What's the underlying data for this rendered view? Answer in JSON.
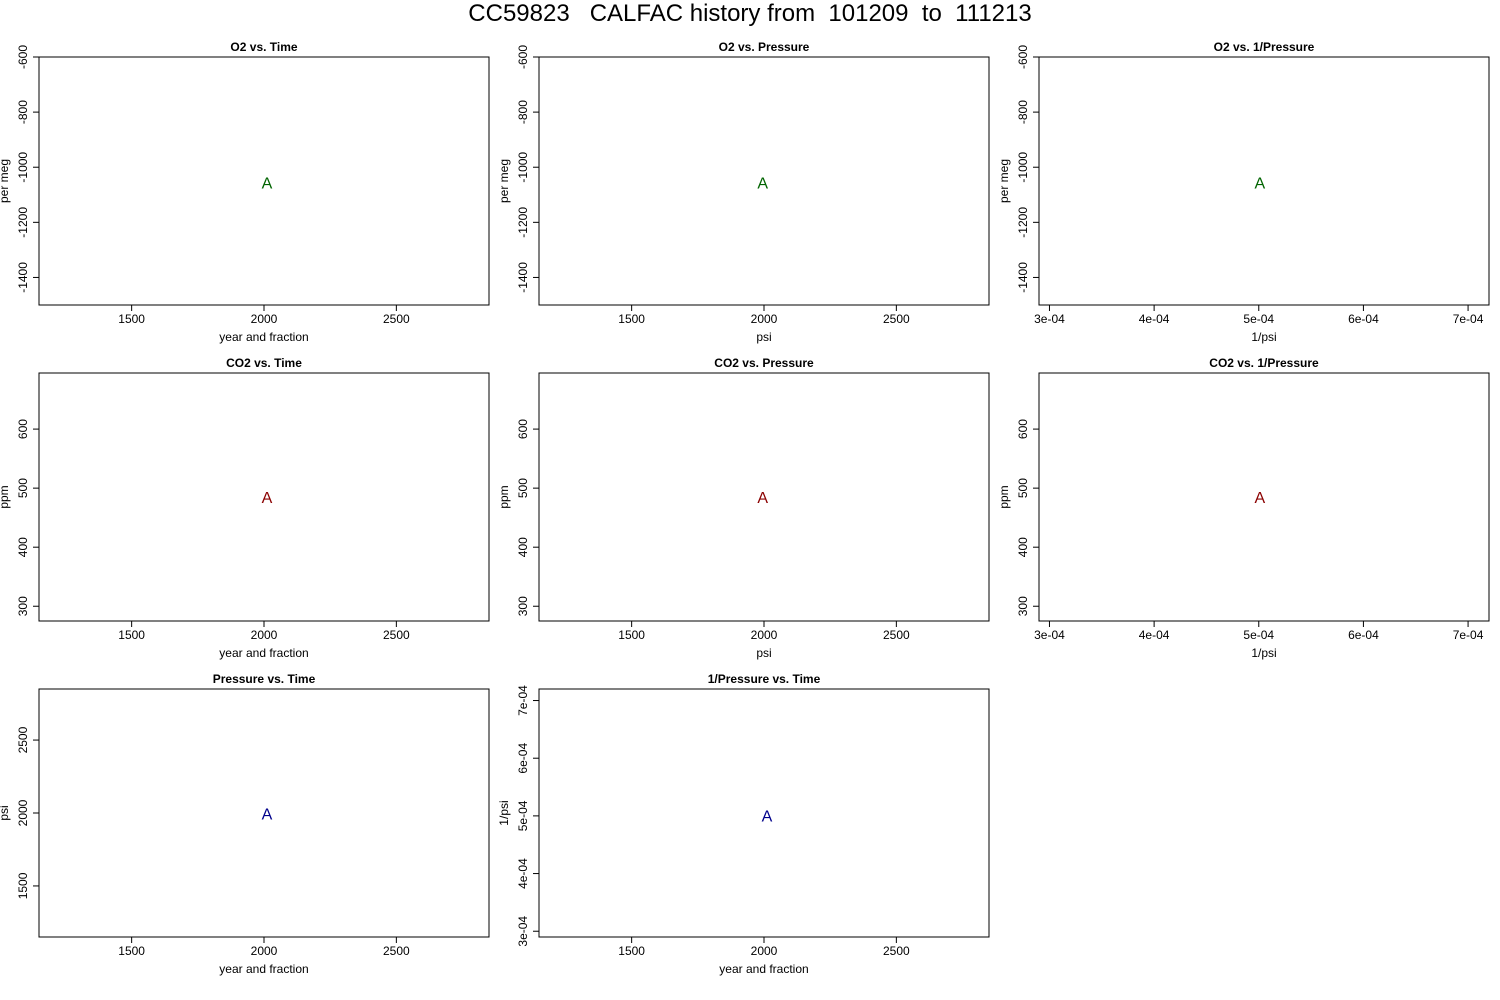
{
  "page": {
    "title": "CC59823   CALFAC history from  101209  to  111213"
  },
  "chart_data": [
    {
      "type": "scatter",
      "title": "O2 vs. Time",
      "xlabel": "year and fraction",
      "ylabel": "per meg",
      "xlim": [
        1150,
        2850
      ],
      "ylim": [
        -1500,
        -600
      ],
      "xticks": [
        1500,
        2000,
        2500
      ],
      "xtick_labels": [
        "1500",
        "2000",
        "2500"
      ],
      "yticks": [
        -600,
        -800,
        -1000,
        -1200,
        -1400
      ],
      "ytick_labels": [
        "-600",
        "-800",
        "-1000",
        "-1200",
        "-1400"
      ],
      "points": [
        {
          "x": 2011,
          "y": -1055,
          "label": "A"
        }
      ],
      "color": "#006400"
    },
    {
      "type": "scatter",
      "title": "O2 vs. Pressure",
      "xlabel": "psi",
      "ylabel": "per meg",
      "xlim": [
        1150,
        2850
      ],
      "ylim": [
        -1500,
        -600
      ],
      "xticks": [
        1500,
        2000,
        2500
      ],
      "xtick_labels": [
        "1500",
        "2000",
        "2500"
      ],
      "yticks": [
        -600,
        -800,
        -1000,
        -1200,
        -1400
      ],
      "ytick_labels": [
        "-600",
        "-800",
        "-1000",
        "-1200",
        "-1400"
      ],
      "points": [
        {
          "x": 1995,
          "y": -1055,
          "label": "A"
        }
      ],
      "color": "#006400"
    },
    {
      "type": "scatter",
      "title": "O2 vs. 1/Pressure",
      "xlabel": "1/psi",
      "ylabel": "per meg",
      "xlim": [
        0.00029,
        0.00072
      ],
      "ylim": [
        -1500,
        -600
      ],
      "xticks": [
        0.0003,
        0.0004,
        0.0005,
        0.0006,
        0.0007
      ],
      "xtick_labels": [
        "3e-04",
        "4e-04",
        "5e-04",
        "6e-04",
        "7e-04"
      ],
      "yticks": [
        -600,
        -800,
        -1000,
        -1200,
        -1400
      ],
      "ytick_labels": [
        "-600",
        "-800",
        "-1000",
        "-1200",
        "-1400"
      ],
      "points": [
        {
          "x": 0.000501,
          "y": -1055,
          "label": "A"
        }
      ],
      "color": "#006400"
    },
    {
      "type": "scatter",
      "title": "CO2 vs. Time",
      "xlabel": "year and fraction",
      "ylabel": "ppm",
      "xlim": [
        1150,
        2850
      ],
      "ylim": [
        275,
        695
      ],
      "xticks": [
        1500,
        2000,
        2500
      ],
      "xtick_labels": [
        "1500",
        "2000",
        "2500"
      ],
      "yticks": [
        300,
        400,
        500,
        600
      ],
      "ytick_labels": [
        "300",
        "400",
        "500",
        "600"
      ],
      "points": [
        {
          "x": 2011,
          "y": 485,
          "label": "A"
        }
      ],
      "color": "#8b0000"
    },
    {
      "type": "scatter",
      "title": "CO2 vs. Pressure",
      "xlabel": "psi",
      "ylabel": "ppm",
      "xlim": [
        1150,
        2850
      ],
      "ylim": [
        275,
        695
      ],
      "xticks": [
        1500,
        2000,
        2500
      ],
      "xtick_labels": [
        "1500",
        "2000",
        "2500"
      ],
      "yticks": [
        300,
        400,
        500,
        600
      ],
      "ytick_labels": [
        "300",
        "400",
        "500",
        "600"
      ],
      "points": [
        {
          "x": 1995,
          "y": 485,
          "label": "A"
        }
      ],
      "color": "#8b0000"
    },
    {
      "type": "scatter",
      "title": "CO2 vs. 1/Pressure",
      "xlabel": "1/psi",
      "ylabel": "ppm",
      "xlim": [
        0.00029,
        0.00072
      ],
      "ylim": [
        275,
        695
      ],
      "xticks": [
        0.0003,
        0.0004,
        0.0005,
        0.0006,
        0.0007
      ],
      "xtick_labels": [
        "3e-04",
        "4e-04",
        "5e-04",
        "6e-04",
        "7e-04"
      ],
      "yticks": [
        300,
        400,
        500,
        600
      ],
      "ytick_labels": [
        "300",
        "400",
        "500",
        "600"
      ],
      "points": [
        {
          "x": 0.000501,
          "y": 485,
          "label": "A"
        }
      ],
      "color": "#8b0000"
    },
    {
      "type": "scatter",
      "title": "Pressure vs. Time",
      "xlabel": "year and fraction",
      "ylabel": "psi",
      "xlim": [
        1150,
        2850
      ],
      "ylim": [
        1150,
        2850
      ],
      "xticks": [
        1500,
        2000,
        2500
      ],
      "xtick_labels": [
        "1500",
        "2000",
        "2500"
      ],
      "yticks": [
        1500,
        2000,
        2500
      ],
      "ytick_labels": [
        "1500",
        "2000",
        "2500"
      ],
      "points": [
        {
          "x": 2011,
          "y": 1995,
          "label": "A"
        }
      ],
      "color": "#00008b"
    },
    {
      "type": "scatter",
      "title": "1/Pressure vs. Time",
      "xlabel": "year and fraction",
      "ylabel": "1/psi",
      "xlim": [
        1150,
        2850
      ],
      "ylim": [
        0.00029,
        0.00072
      ],
      "xticks": [
        1500,
        2000,
        2500
      ],
      "xtick_labels": [
        "1500",
        "2000",
        "2500"
      ],
      "yticks": [
        0.0003,
        0.0004,
        0.0005,
        0.0006,
        0.0007
      ],
      "ytick_labels": [
        "3e-04",
        "4e-04",
        "5e-04",
        "6e-04",
        "7e-04"
      ],
      "points": [
        {
          "x": 2011,
          "y": 0.000501,
          "label": "A"
        }
      ],
      "color": "#00008b"
    }
  ]
}
